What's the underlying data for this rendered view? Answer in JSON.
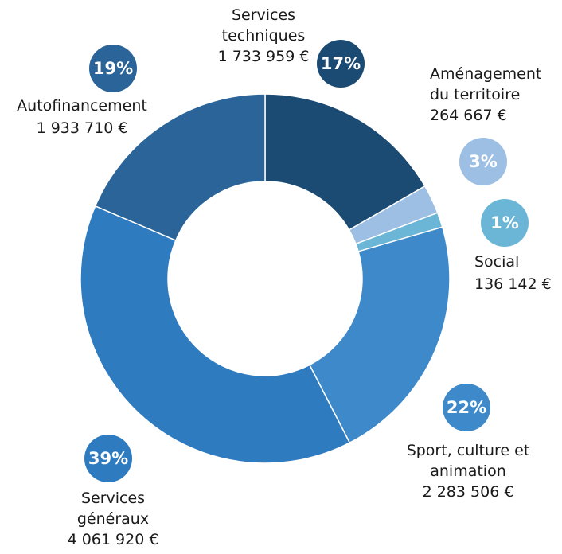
{
  "chart_data": {
    "type": "donut",
    "categories": [
      "Services techniques",
      "Aménagement du territoire",
      "Social",
      "Sport, culture et animation",
      "Services généraux",
      "Autofinancement"
    ],
    "values": [
      1733959,
      264667,
      136142,
      2283506,
      4061920,
      1933710
    ],
    "value_labels": [
      "1 733 959 €",
      "264 667 €",
      "136 142 €",
      "2 283 506 €",
      "4 061 920 €",
      "1 933 710 €"
    ],
    "percentage_labels": [
      "17%",
      "3%",
      "1%",
      "22%",
      "39%",
      "19%"
    ],
    "colors": [
      "#1b4a72",
      "#9dbfe4",
      "#6bb6d6",
      "#3d89c9",
      "#2f7bbf",
      "#2a6499"
    ]
  }
}
